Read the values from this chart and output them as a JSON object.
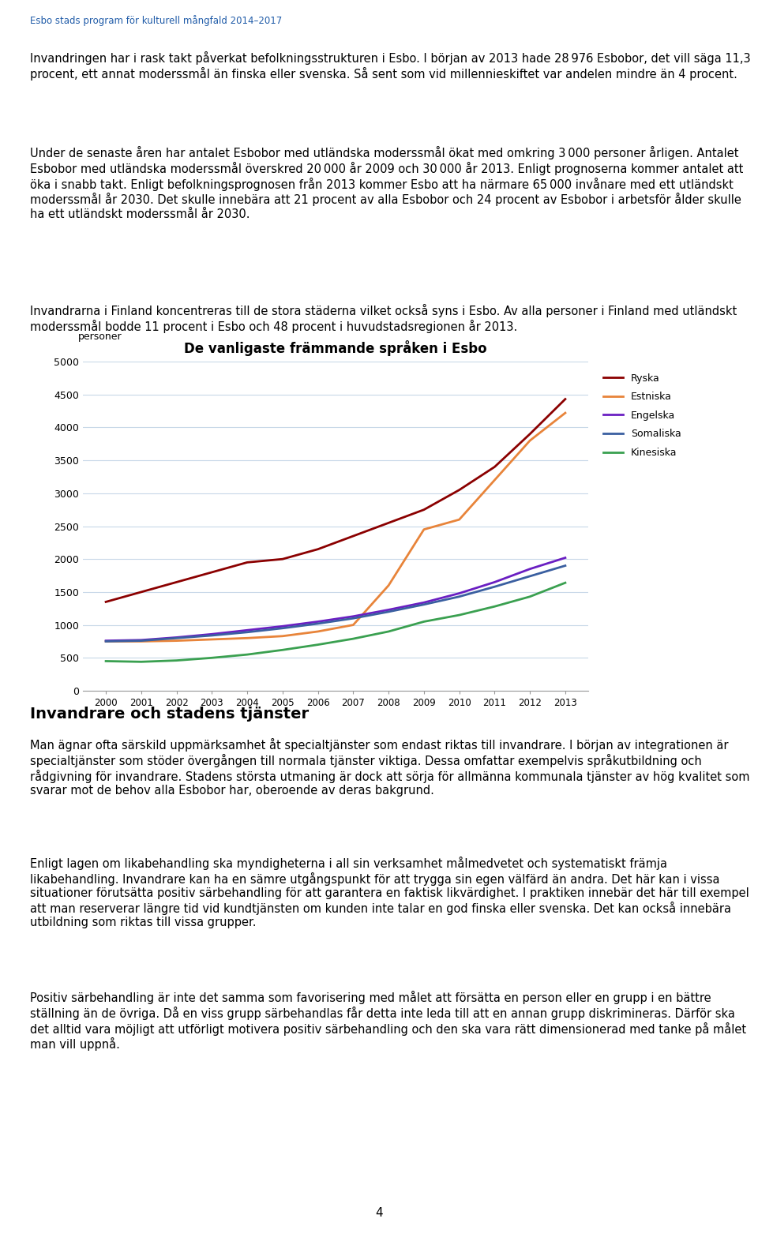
{
  "title": "De vanligaste främmande språken i Esbo",
  "ylabel": "personer",
  "header": "Esbo stads program för kulturell mångfald 2014–2017",
  "para1": "Invandringen har i rask takt påverkat befolkningsstrukturen i Esbo. I början av 2013 hade 28 976\nEsbobor, det vill säga 11,3 procent, ett annat moderssmål än finska eller svenska. Så sent som vid\nmillennieskiftet var andelen mindre än 4 procent.",
  "para2": "Under de senaste åren har antalet Esbobor med utländska moderssmål ökat med omkring 3 000\npersoner årligen. Antalet Esbobor med utländska moderssmål överskred 20 000 år 2009 och 30 000\når 2013. Enligt prognoserna kommer antalet att öka i snabb takt. Enligt befolkningsprognosen från\n2013 kommer Esbo att ha närmare 65 000 invånare med ett utländskt moderssmål år 2030. Det\nsku lle innebära att 21 procent av alla Esbobor och 24 procent av Esbobor i arbetsför ålder skulle ha\nett utländskt moderssmål år 2030.",
  "para3": "Invandrarna i Finland koncentreras till de stora städerna vilket också syns i Esbo. Av alla personer i\nFinland med utländskt moderssmål bodde 11 procent i Esbo och 48 procent i huvudstadsregionen år\n2013.",
  "section": "Invandrare och stadens tjänster",
  "para4": "Man ägnar ofta särskild uppmärksamhet åt specialtjänster som endast riktas till invandrare. I början\nav integrationen är specialtjänster som stöder övergången till normala tjänster viktiga. Dessa\nomfattar exempelvis språkutbildning och rådgivning för invandrare. Stadens största utmaning är\ndock att sörja för allmänna kommunala tjänster av hög kvalitet som svarar mot de behov alla\nEsbobor har, oberoende av deras bakgrund.",
  "para5": "Enligt lagen om likabehandling ska myndigheterna i all sin verksamhet målmedvetet och\nsystematiskt främja likabehandling. Invandrare kan ha en sämre utgångspunkt för att trygga sin\negen välfärd än andra. Det här kan i vissa situationer förutsätta positiv särbehandling för att\ngarantera en faktisk likvärdighet. I praktiken innebär det här till exempel att man reserverar längre\ntid vid kundtjänsten om kunden inte talar en god finska eller svenska. Det kan också innebära\nutbildning som riktas till vissa grupper.",
  "para6": "Positiv särbehandling är inte det samma som favorisering med målet att försätta en person eller en\ngrupp i en bättre ställning än de övriga. Då en viss grupp särbehandlas får detta inte leda till att en\nannan grupp diskrimineras. Därför ska det alltid vara möjligt att utförligt motivera positiv\nsärbehandling och den ska vara rätt dimensionerad med tanke på målet man vill uppnå.",
  "footer": "4",
  "years": [
    2000,
    2001,
    2002,
    2003,
    2004,
    2005,
    2006,
    2007,
    2008,
    2009,
    2010,
    2011,
    2012,
    2013
  ],
  "series": [
    {
      "name": "Ryska",
      "color": "#8B0000",
      "values": [
        1350,
        1500,
        1650,
        1800,
        1950,
        2000,
        2150,
        2350,
        2550,
        2750,
        3050,
        3400,
        3900,
        4430
      ]
    },
    {
      "name": "Estniska",
      "color": "#E8843A",
      "values": [
        750,
        750,
        760,
        780,
        800,
        830,
        900,
        1000,
        1600,
        2450,
        2600,
        3200,
        3800,
        4220
      ]
    },
    {
      "name": "Engelska",
      "color": "#6A1FC2",
      "values": [
        760,
        770,
        810,
        860,
        920,
        980,
        1050,
        1130,
        1230,
        1340,
        1480,
        1650,
        1850,
        2020
      ]
    },
    {
      "name": "Somaliska",
      "color": "#3A5FA0",
      "values": [
        750,
        760,
        800,
        840,
        890,
        950,
        1020,
        1100,
        1200,
        1310,
        1430,
        1580,
        1740,
        1900
      ]
    },
    {
      "name": "Kinesiska",
      "color": "#3AA050",
      "values": [
        450,
        440,
        460,
        500,
        550,
        620,
        700,
        790,
        900,
        1050,
        1150,
        1280,
        1430,
        1640
      ]
    }
  ],
  "ylim": [
    0,
    5000
  ],
  "yticks": [
    0,
    500,
    1000,
    1500,
    2000,
    2500,
    3000,
    3500,
    4000,
    4500,
    5000
  ],
  "background_color": "#ffffff",
  "grid_color": "#c8d8e8",
  "header_color": "#1F5BA8"
}
